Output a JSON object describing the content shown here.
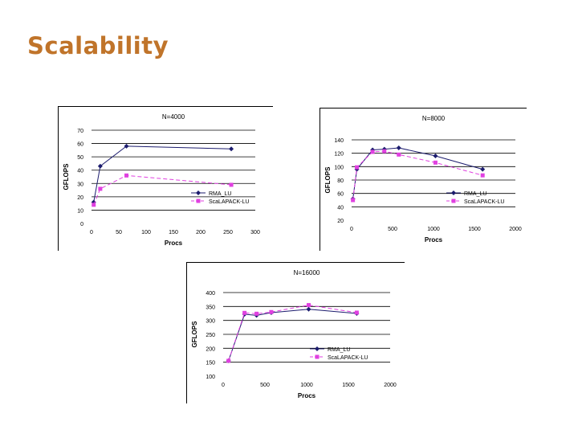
{
  "slide": {
    "title": "Scalability"
  },
  "chart_data": [
    {
      "id": "n4000",
      "type": "line",
      "title": "N=4000",
      "xlabel": "Procs",
      "ylabel": "GFLOPS",
      "xlim": [
        0,
        300
      ],
      "ylim": [
        0,
        70
      ],
      "xticks": [
        0,
        50,
        100,
        150,
        200,
        250,
        300
      ],
      "yticks": [
        0,
        10,
        20,
        30,
        40,
        50,
        60,
        70
      ],
      "grid": "horizontal",
      "legend": "bottom-right",
      "series": [
        {
          "name": "RMA_LU",
          "color": "#1c1c6e",
          "marker": "diamond",
          "dash": "none",
          "x": [
            4,
            16,
            64,
            256
          ],
          "y": [
            16,
            43,
            58,
            56
          ]
        },
        {
          "name": "ScaLAPACK-LU",
          "color": "#e040e0",
          "marker": "square",
          "dash": "dashed",
          "x": [
            4,
            16,
            64,
            256
          ],
          "y": [
            14,
            26,
            36,
            29
          ]
        }
      ]
    },
    {
      "id": "n8000",
      "type": "line",
      "title": "N=8000",
      "xlabel": "Procs",
      "ylabel": "GFLOPS",
      "xlim": [
        0,
        2000
      ],
      "ylim": [
        20,
        140
      ],
      "xticks": [
        0,
        500,
        1000,
        1500,
        2000
      ],
      "yticks": [
        20,
        40,
        60,
        80,
        100,
        120,
        140
      ],
      "grid": "horizontal",
      "legend": "bottom-right",
      "series": [
        {
          "name": "RMA_LU",
          "color": "#1c1c6e",
          "marker": "diamond",
          "dash": "none",
          "x": [
            16,
            64,
            256,
            400,
            576,
            1024,
            1600
          ],
          "y": [
            52,
            96,
            125,
            126,
            128,
            116,
            96
          ]
        },
        {
          "name": "ScaLAPACK-LU",
          "color": "#e040e0",
          "marker": "square",
          "dash": "dashed",
          "x": [
            16,
            64,
            256,
            400,
            576,
            1024,
            1600
          ],
          "y": [
            50,
            99,
            122,
            123,
            118,
            106,
            87
          ]
        }
      ]
    },
    {
      "id": "n16000",
      "type": "line",
      "title": "N=16000",
      "xlabel": "Procs",
      "ylabel": "GFLOPS",
      "xlim": [
        0,
        2000
      ],
      "ylim": [
        100,
        400
      ],
      "xticks": [
        0,
        500,
        1000,
        1500,
        2000
      ],
      "yticks": [
        100,
        150,
        200,
        250,
        300,
        350,
        400
      ],
      "grid": "horizontal",
      "legend": "bottom-right",
      "series": [
        {
          "name": "RMA_LU",
          "color": "#1c1c6e",
          "marker": "diamond",
          "dash": "none",
          "x": [
            64,
            256,
            400,
            576,
            1024,
            1600
          ],
          "y": [
            155,
            322,
            318,
            328,
            340,
            325
          ]
        },
        {
          "name": "ScaLAPACK-LU",
          "color": "#e040e0",
          "marker": "square",
          "dash": "dashed",
          "x": [
            64,
            256,
            400,
            576,
            1024,
            1600
          ],
          "y": [
            155,
            327,
            324,
            330,
            355,
            328
          ]
        }
      ]
    }
  ]
}
